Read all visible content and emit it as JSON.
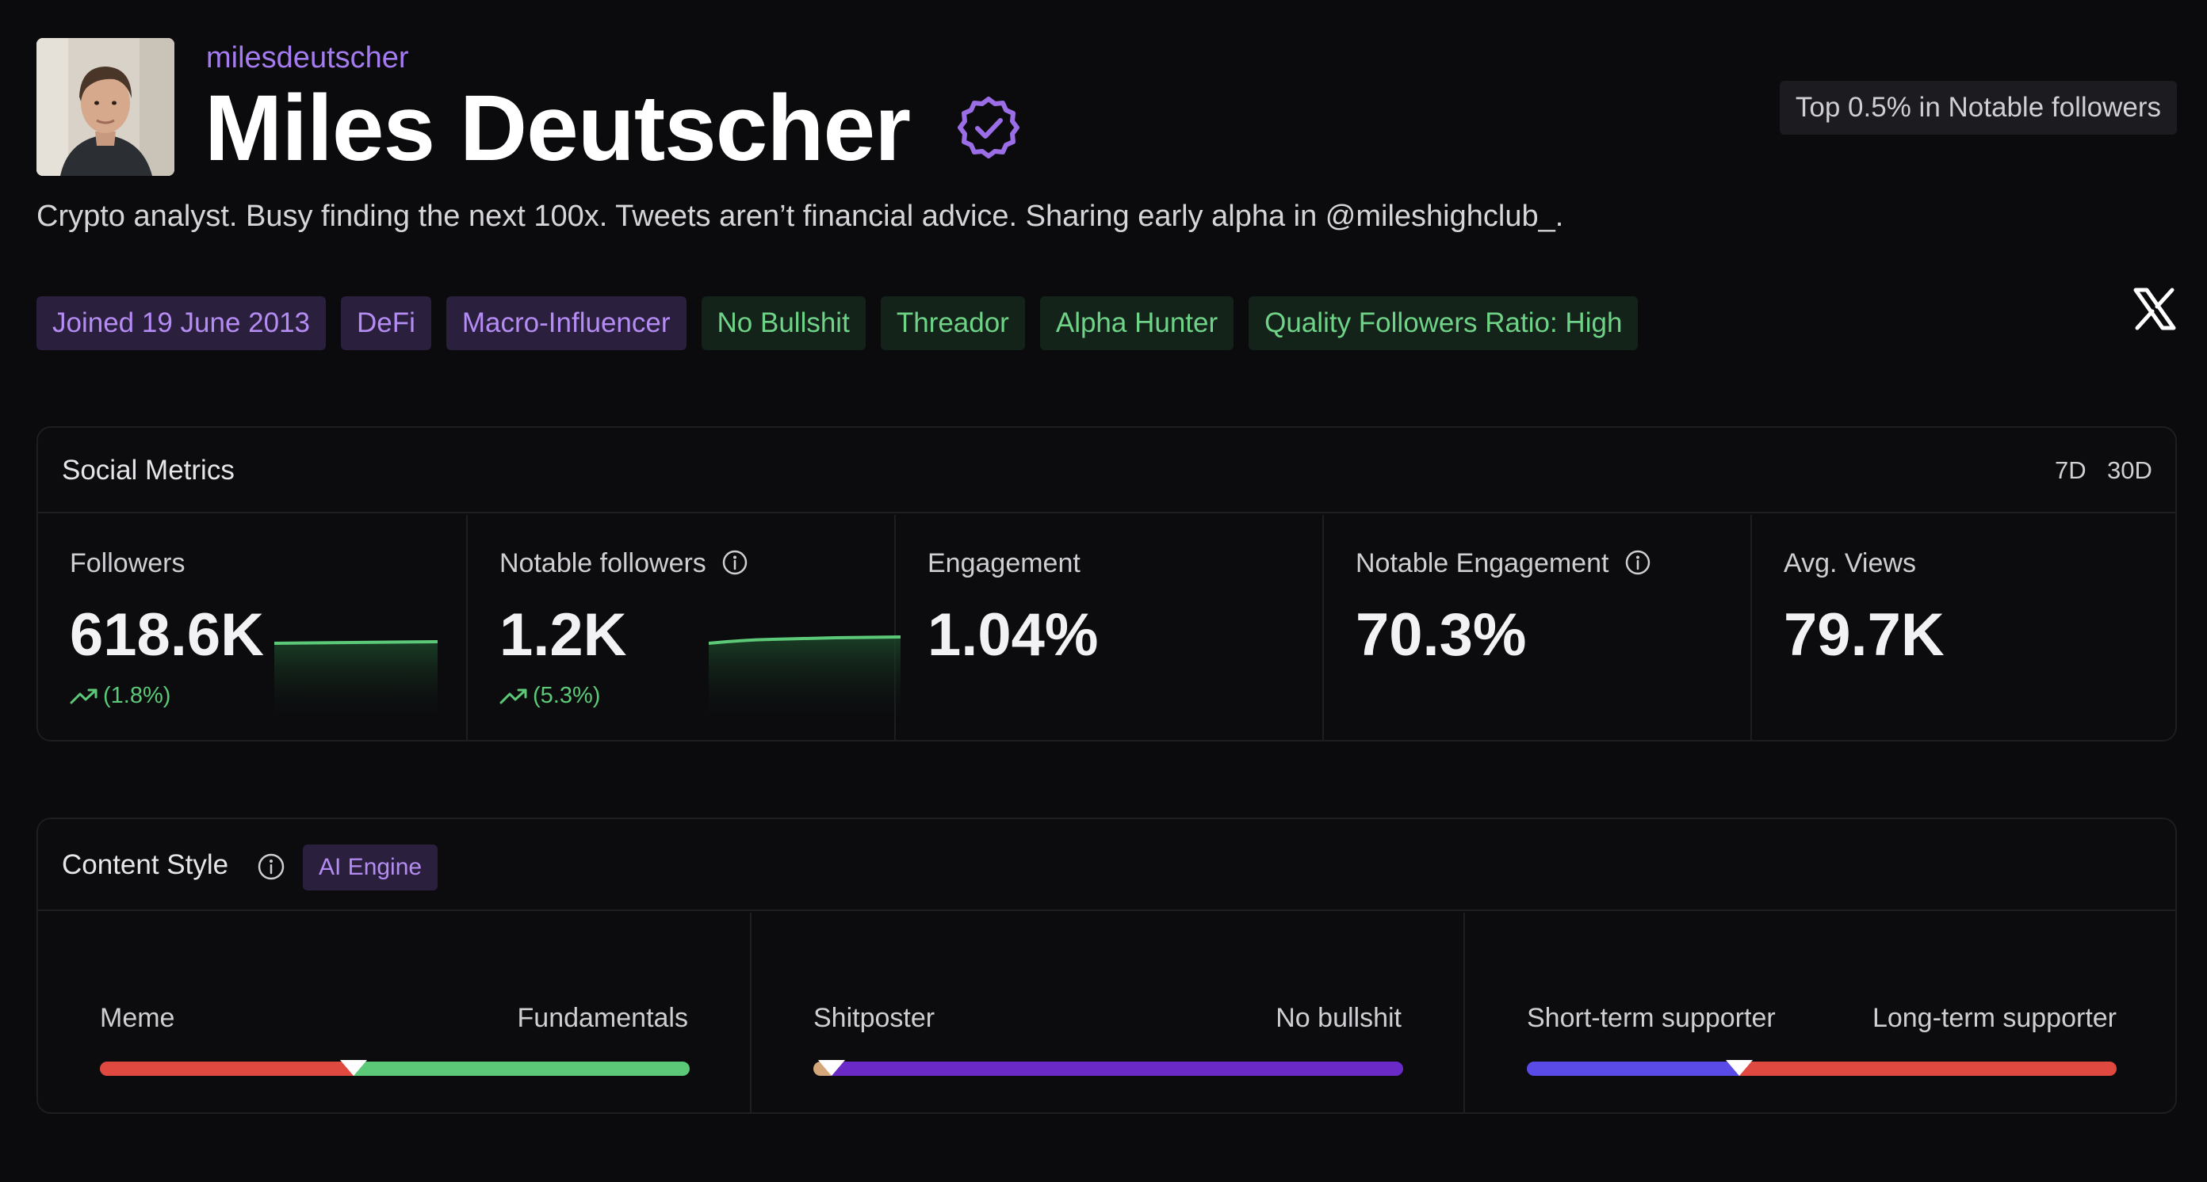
{
  "profile": {
    "handle": "milesdeutscher",
    "name": "Miles Deutscher",
    "bio": "Crypto analyst. Busy finding the next 100x. Tweets aren’t financial advice. Sharing early alpha in @mileshighclub_.",
    "rank_badge": "Top 0.5% in Notable followers",
    "verified_icon": "verified-badge-icon",
    "social_link_icon": "x-logo-icon"
  },
  "tags": [
    {
      "label": "Joined 19 June 2013",
      "color": "purple"
    },
    {
      "label": "DeFi",
      "color": "purple"
    },
    {
      "label": "Macro-Influencer",
      "color": "purple"
    },
    {
      "label": "No Bullshit",
      "color": "green"
    },
    {
      "label": "Threador",
      "color": "green"
    },
    {
      "label": "Alpha Hunter",
      "color": "green"
    },
    {
      "label": "Quality Followers Ratio: High",
      "color": "green"
    }
  ],
  "social_metrics": {
    "title": "Social Metrics",
    "periods": [
      "7D",
      "30D"
    ],
    "items": [
      {
        "label": "Followers",
        "value": "618.6K",
        "change": "(1.8%)"
      },
      {
        "label": "Notable followers",
        "value": "1.2K",
        "change": "(5.3%)"
      },
      {
        "label": "Engagement",
        "value": "1.04%"
      },
      {
        "label": "Notable Engagement",
        "value": "70.3%"
      },
      {
        "label": "Avg. Views",
        "value": "79.7K"
      }
    ]
  },
  "content_style": {
    "title": "Content Style",
    "badge": "AI Engine",
    "sliders": [
      {
        "left": "Meme",
        "right": "Fundamentals",
        "position": 0.43
      },
      {
        "left": "Shitposter",
        "right": "No bullshit",
        "position": 0.03
      },
      {
        "left": "Short-term supporter",
        "right": "Long-term supporter",
        "position": 0.36
      }
    ]
  },
  "colors": {
    "accent_purple": "#a57cf0",
    "accent_green": "#5cc978",
    "red": "#e0493f",
    "violet": "#6b2ac7",
    "indigo": "#5a4ae6",
    "background": "#0b0b0d"
  }
}
